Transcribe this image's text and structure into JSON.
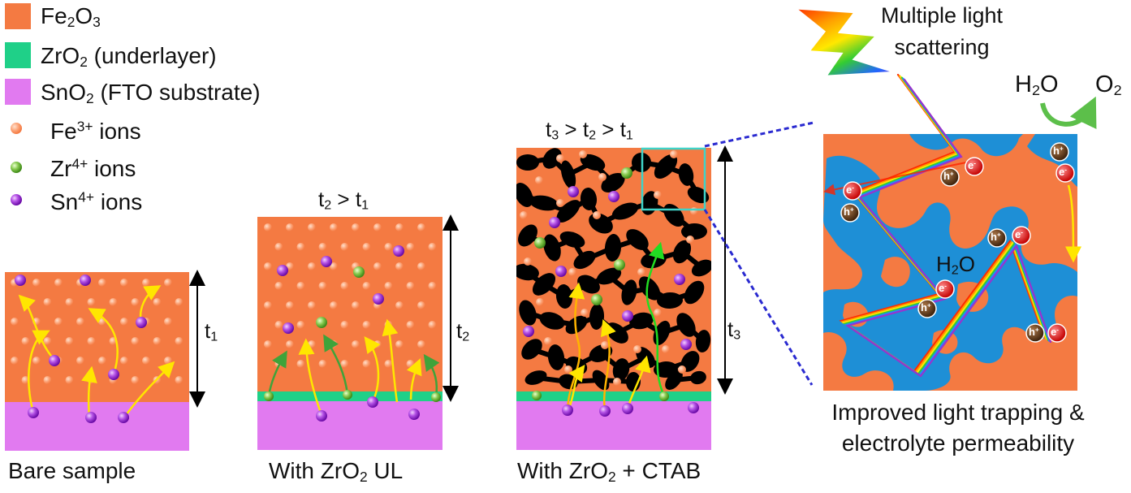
{
  "legend": {
    "fe2o3": {
      "pre": "Fe",
      "sub1": "2",
      "mid": "O",
      "sub2": "3",
      "color": "#f47a42"
    },
    "zro2": {
      "pre": "ZrO",
      "sub": "2",
      "post": " (underlayer)",
      "color": "#1fd088"
    },
    "sno2": {
      "pre": "SnO",
      "sub": "2",
      "post": " (FTO substrate)",
      "color": "#e17af0"
    },
    "fe_ion": {
      "pre": "Fe",
      "sup": "3+",
      "post": " ions",
      "color": "#f58a5a"
    },
    "zr_ion": {
      "pre": "Zr",
      "sup": "4+",
      "post": " ions",
      "color": "#5fa830"
    },
    "sn_ion": {
      "pre": "Sn",
      "sup": "4+",
      "post": " ions",
      "color": "#8a24c4"
    }
  },
  "panels": {
    "bare": {
      "caption": "Bare sample",
      "thickness": {
        "pre": "t",
        "sub": "1"
      }
    },
    "zro2_ul": {
      "caption": {
        "pre": "With ZrO",
        "sub": "2",
        "post": " UL"
      },
      "thickness": {
        "pre": "t",
        "sub": "2"
      },
      "condition": {
        "t2": "t",
        "t2sub": "2",
        "gt": " > ",
        "t1": "t",
        "t1sub": "1"
      }
    },
    "ctab": {
      "caption": {
        "pre": "With ZrO",
        "sub": "2",
        "post": " + CTAB"
      },
      "thickness": {
        "pre": "t",
        "sub": "3"
      },
      "condition": {
        "a": "t",
        "asub": "3",
        "gt1": " > ",
        "b": "t",
        "bsub": "2",
        "gt2": " > ",
        "c": "t",
        "csub": "1"
      }
    }
  },
  "zoom": {
    "light_label_line1": "Multiple light",
    "light_label_line2": "scattering",
    "water_in": {
      "pre": "H",
      "sub": "2",
      "post": "O"
    },
    "oxygen_out": {
      "pre": "O",
      "sub": "2"
    },
    "inner_water": {
      "pre": "H",
      "sub": "2",
      "post": "O"
    },
    "hole_symbol": "h",
    "hole_sup": "+",
    "electron_symbol": "e",
    "electron_sup": "-",
    "conclusion_line1": "Improved light trapping &",
    "conclusion_line2": "electrolyte permeability"
  },
  "colors": {
    "hematite": "#f47a42",
    "zirconia": "#1fd088",
    "fto": "#e17af0",
    "pore": "#000000",
    "electrolyte": "#1e8fd6",
    "arrow_yellow": "#ffe600",
    "arrow_green": "#3fa33a",
    "arrow_bright_green": "#22dd22",
    "zoom_box": "#3fd3c8",
    "dashed": "#2a2ad0"
  }
}
